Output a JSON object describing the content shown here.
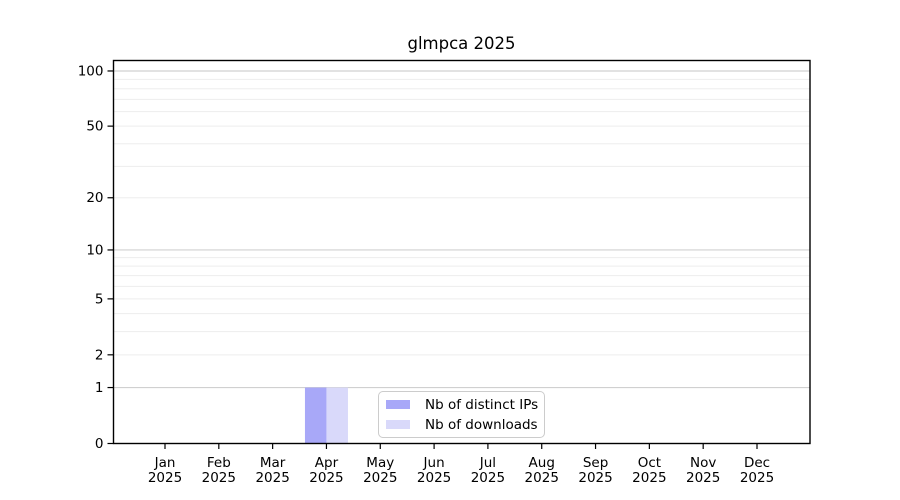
{
  "chart_data": {
    "type": "bar",
    "title": "glmpca 2025",
    "categories": [
      "Jan 2025",
      "Feb 2025",
      "Mar 2025",
      "Apr 2025",
      "May 2025",
      "Jun 2025",
      "Jul 2025",
      "Aug 2025",
      "Sep 2025",
      "Oct 2025",
      "Nov 2025",
      "Dec 2025"
    ],
    "series": [
      {
        "name": "Nb of distinct IPs",
        "color": "#a8a8f8",
        "values": [
          0,
          0,
          0,
          1,
          0,
          0,
          0,
          0,
          0,
          0,
          0,
          0
        ]
      },
      {
        "name": "Nb of downloads",
        "color": "#d9d9fa",
        "values": [
          0,
          0,
          0,
          1,
          0,
          0,
          0,
          0,
          0,
          0,
          0,
          0
        ]
      }
    ],
    "xlabel": "",
    "ylabel": "",
    "yscale": "log1p",
    "ylim": [
      0,
      114
    ],
    "yticks": [
      0,
      1,
      2,
      5,
      10,
      20,
      50,
      100
    ],
    "major_gridlines": [
      1,
      10,
      100
    ],
    "minor_gridlines": [
      2,
      3,
      4,
      5,
      6,
      7,
      8,
      9,
      20,
      30,
      40,
      50,
      60,
      70,
      80,
      90
    ],
    "grid": "horizontal only",
    "legend": {
      "position": "bottom-center"
    }
  },
  "colors": {
    "major_grid": "#d0d0d0",
    "minor_grid": "#ededed",
    "spine": "#000000",
    "tick": "#000000",
    "text": "#000000",
    "legend_border": "#cccccc"
  }
}
